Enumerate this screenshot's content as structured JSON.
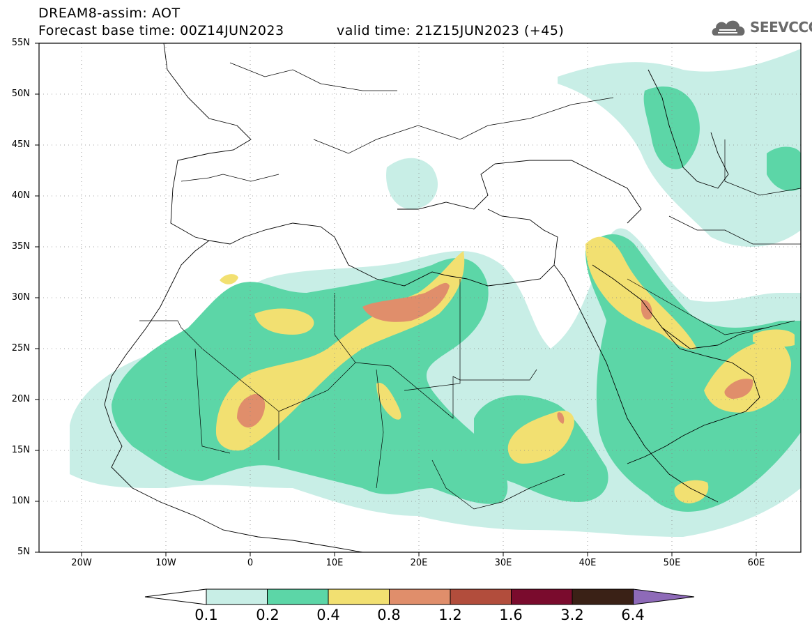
{
  "header": {
    "title": "DREAM8-assim: AOT",
    "base_time": "Forecast base time: 00Z14JUN2023",
    "valid_time": "valid time: 21Z15JUN2023 (+45)",
    "logo_text": "SEEVCCC"
  },
  "map": {
    "projection": "lat-lon",
    "lon_range": [
      -25,
      65
    ],
    "lat_range": [
      5,
      55
    ],
    "lat_labels": [
      "55N",
      "50N",
      "45N",
      "40N",
      "35N",
      "30N",
      "25N",
      "20N",
      "15N",
      "10N",
      "5N"
    ],
    "lon_labels": [
      "20W",
      "10W",
      "0",
      "10E",
      "20E",
      "30E",
      "40E",
      "50E",
      "60E"
    ],
    "variable": "AOT",
    "grid": "dotted"
  },
  "colorbar": {
    "levels": [
      "0.1",
      "0.2",
      "0.4",
      "0.8",
      "1.2",
      "1.6",
      "3.2",
      "6.4"
    ],
    "colors": [
      "#ffffff",
      "#c8eee6",
      "#5cd6a7",
      "#f2e071",
      "#e08e6b",
      "#b24d3c",
      "#7a0b2d",
      "#3a2116",
      "#8e6ab8"
    ]
  }
}
